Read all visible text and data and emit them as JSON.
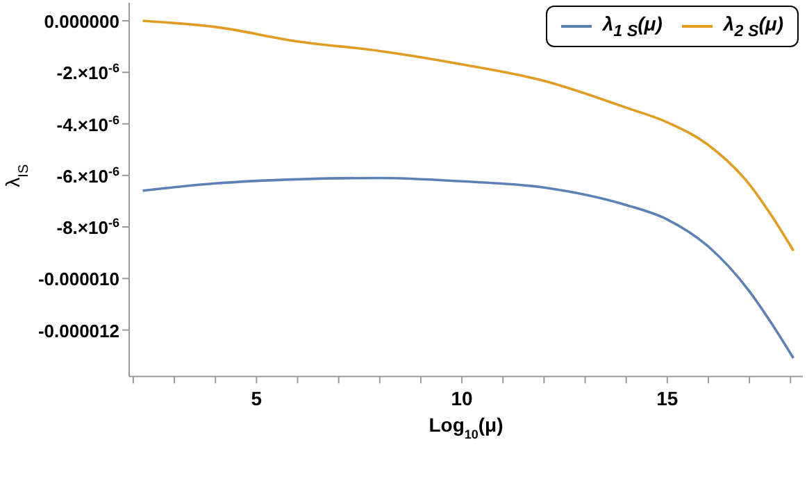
{
  "chart_data": {
    "type": "line",
    "xlabel": "Log$_{10}$(μ)",
    "ylabel": "λ$_{IS}$",
    "xlim": [
      1.9,
      18.3
    ],
    "ylim": [
      -1.38e-05,
      7e-07
    ],
    "xticks": [
      {
        "value": 2,
        "label": null
      },
      {
        "value": 3,
        "label": null
      },
      {
        "value": 4,
        "label": null
      },
      5,
      {
        "value": 6,
        "label": null
      },
      {
        "value": 7,
        "label": null
      },
      {
        "value": 8,
        "label": null
      },
      {
        "value": 9,
        "label": null
      },
      10,
      {
        "value": 11,
        "label": null
      },
      {
        "value": 12,
        "label": null
      },
      {
        "value": 13,
        "label": null
      },
      {
        "value": 14,
        "label": null
      },
      15,
      {
        "value": 16,
        "label": null
      },
      {
        "value": 17,
        "label": null
      },
      {
        "value": 18,
        "label": null
      }
    ],
    "yticks": [
      {
        "value": 0,
        "label": "0.000000"
      },
      {
        "value": -2e-06,
        "label": "-2.×10$^{-6}$"
      },
      {
        "value": -4e-06,
        "label": "-4.×10$^{-6}$"
      },
      {
        "value": -6e-06,
        "label": "-6.×10$^{-6}$"
      },
      {
        "value": -8e-06,
        "label": "-8.×10$^{-6}$"
      },
      {
        "value": -1e-05,
        "label": "-0.000010"
      },
      {
        "value": -1.2e-05,
        "label": "-0.000012"
      }
    ],
    "legend": "top right",
    "grid": false,
    "marker": "none",
    "line_style": "solid",
    "x": [
      2.23,
      4,
      6,
      8,
      10,
      12,
      14,
      15,
      16,
      17,
      17.5,
      18.07
    ],
    "series": [
      {
        "name": "λ$_{1 S}$(μ)",
        "color": "#5e81b5",
        "values": [
          -6.59e-06,
          -6.31e-06,
          -6.15e-06,
          -6.1e-06,
          -6.23e-06,
          -6.47e-06,
          -7.15e-06,
          -7.71e-06,
          -8.76e-06,
          -1.05e-05,
          -1.165e-05,
          -1.309e-05
        ]
      },
      {
        "name": "λ$_{2 S}$(μ)",
        "color": "#e19c24",
        "values": [
          0,
          -2.4e-07,
          -8e-07,
          -1.17e-06,
          -1.69e-06,
          -2.33e-06,
          -3.37e-06,
          -3.94e-06,
          -4.82e-06,
          -6.35e-06,
          -7.47e-06,
          -8.92e-06
        ]
      }
    ]
  }
}
